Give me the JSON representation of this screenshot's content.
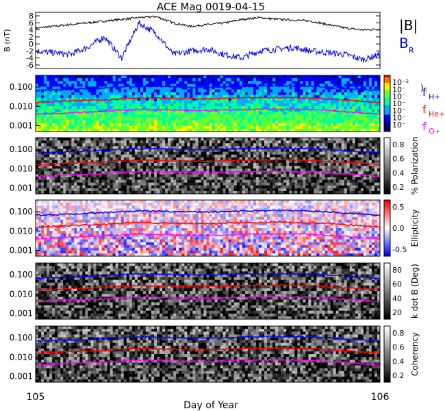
{
  "chart_data": {
    "type": "line",
    "title": "ACE Mag 0019-04-15",
    "xlabel": "Day of Year",
    "x_ticks": [
      "105",
      "106"
    ],
    "xlim": [
      105,
      106
    ],
    "panels": [
      {
        "id": "field",
        "ylabel": "B (nT)",
        "ylim": [
          -7,
          9
        ],
        "y_ticks": [
          -6,
          -4,
          -2,
          0,
          2,
          4,
          6,
          8
        ],
        "legend": [
          "|B|",
          "B_R"
        ],
        "series": [
          {
            "name": "|B|",
            "color": "#000000",
            "x": [
              105.0,
              105.05,
              105.1,
              105.15,
              105.2,
              105.25,
              105.3,
              105.35,
              105.4,
              105.45,
              105.5,
              105.55,
              105.6,
              105.65,
              105.7,
              105.75,
              105.8,
              105.85,
              105.9,
              105.95,
              106.0
            ],
            "values": [
              4.5,
              5.0,
              5.5,
              6.0,
              6.5,
              7.0,
              7.5,
              7.8,
              6.0,
              5.0,
              5.5,
              6.0,
              7.0,
              7.5,
              7.0,
              6.8,
              6.5,
              5.5,
              4.5,
              4.0,
              4.2
            ]
          },
          {
            "name": "B_R",
            "color": "#0000ee",
            "x": [
              105.0,
              105.05,
              105.1,
              105.15,
              105.2,
              105.25,
              105.3,
              105.35,
              105.4,
              105.45,
              105.5,
              105.55,
              105.6,
              105.65,
              105.7,
              105.75,
              105.8,
              105.85,
              105.9,
              105.95,
              106.0
            ],
            "values": [
              -2.0,
              -2.5,
              -3.0,
              -1.0,
              2.0,
              -4.0,
              6.0,
              3.0,
              -3.0,
              -2.0,
              -1.5,
              -3.0,
              -4.0,
              -2.0,
              -1.5,
              -1.0,
              -2.0,
              -2.5,
              -3.0,
              -4.5,
              -3.0
            ]
          }
        ]
      },
      {
        "id": "power",
        "colorbar_label": ")",
        "colorbar_ticks": [
          "10⁻²",
          "10⁻",
          "10⁻",
          "10⁻",
          "10⁻",
          "10⁻",
          "10⁻"
        ],
        "ylim_log": [
          0.0005,
          0.4
        ],
        "y_ticks": [
          "0.100",
          "0.010",
          "0.001"
        ],
        "legend": [
          "f_H+",
          "f_He+",
          "f_O+"
        ]
      },
      {
        "id": "polarization",
        "colorbar_label": "% Polarization",
        "colorbar_ticks": [
          "0.8",
          "0.6",
          "0.4",
          "0.2"
        ],
        "y_ticks": [
          "0.100",
          "0.010",
          "0.001"
        ]
      },
      {
        "id": "ellipticity",
        "colorbar_label": "Ellipticity",
        "colorbar_ticks": [
          "0.5",
          "0.0",
          "-0.5"
        ],
        "y_ticks": [
          "0.100",
          "0.010",
          "0.001"
        ]
      },
      {
        "id": "kdotb",
        "colorbar_label": "k dot B (Deg)",
        "colorbar_ticks": [
          "80",
          "60",
          "40",
          "20"
        ],
        "y_ticks": [
          "0.100",
          "0.010",
          "0.001"
        ]
      },
      {
        "id": "coherency",
        "colorbar_label": "Coherency",
        "colorbar_ticks": [
          "0.8",
          "0.6",
          "0.4",
          "0.2"
        ],
        "y_ticks": [
          "0.100",
          "0.010",
          "0.001"
        ]
      }
    ],
    "gyrofrequency_series": [
      {
        "name": "f_H+",
        "color": "#0000ff",
        "x": [
          105.0,
          105.1,
          105.2,
          105.3,
          105.4,
          105.5,
          105.6,
          105.7,
          105.8,
          105.9,
          106.0
        ],
        "values": [
          0.065,
          0.075,
          0.09,
          0.11,
          0.1,
          0.095,
          0.11,
          0.115,
          0.11,
          0.085,
          0.065
        ]
      },
      {
        "name": "f_He+",
        "color": "#ff0000",
        "x": [
          105.0,
          105.1,
          105.2,
          105.3,
          105.4,
          105.5,
          105.6,
          105.7,
          105.8,
          105.9,
          106.0
        ],
        "values": [
          0.016,
          0.019,
          0.022,
          0.028,
          0.025,
          0.024,
          0.027,
          0.029,
          0.027,
          0.021,
          0.016
        ]
      },
      {
        "name": "f_O+",
        "color": "#ff00ff",
        "x": [
          105.0,
          105.1,
          105.2,
          105.3,
          105.4,
          105.5,
          105.6,
          105.7,
          105.8,
          105.9,
          106.0
        ],
        "values": [
          0.004,
          0.0047,
          0.0056,
          0.007,
          0.0063,
          0.006,
          0.0068,
          0.0072,
          0.0068,
          0.0053,
          0.004
        ]
      }
    ]
  }
}
